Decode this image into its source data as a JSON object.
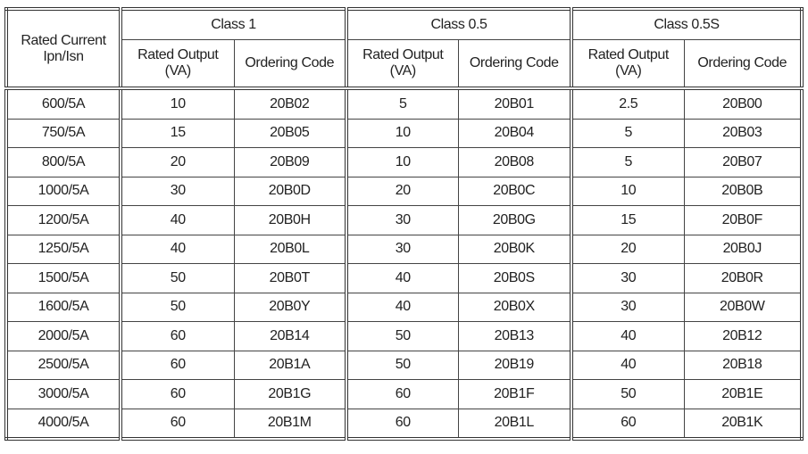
{
  "header": {
    "rated_current": [
      "Rated Current",
      "Ipn/Isn"
    ],
    "classes": [
      {
        "name": "Class 1",
        "output_label": [
          "Rated Output",
          "(VA)"
        ],
        "code_label": "Ordering Code"
      },
      {
        "name": "Class 0.5",
        "output_label": [
          "Rated Output",
          "(VA)"
        ],
        "code_label": "Ordering Code"
      },
      {
        "name": "Class 0.5S",
        "output_label": [
          "Rated Output",
          "(VA)"
        ],
        "code_label": "Ordering Code"
      }
    ]
  },
  "rows": [
    [
      "600/5A",
      "10",
      "20B02",
      "5",
      "20B01",
      "2.5",
      "20B00"
    ],
    [
      "750/5A",
      "15",
      "20B05",
      "10",
      "20B04",
      "5",
      "20B03"
    ],
    [
      "800/5A",
      "20",
      "20B09",
      "10",
      "20B08",
      "5",
      "20B07"
    ],
    [
      "1000/5A",
      "30",
      "20B0D",
      "20",
      "20B0C",
      "10",
      "20B0B"
    ],
    [
      "1200/5A",
      "40",
      "20B0H",
      "30",
      "20B0G",
      "15",
      "20B0F"
    ],
    [
      "1250/5A",
      "40",
      "20B0L",
      "30",
      "20B0K",
      "20",
      "20B0J"
    ],
    [
      "1500/5A",
      "50",
      "20B0T",
      "40",
      "20B0S",
      "30",
      "20B0R"
    ],
    [
      "1600/5A",
      "50",
      "20B0Y",
      "40",
      "20B0X",
      "30",
      "20B0W"
    ],
    [
      "2000/5A",
      "60",
      "20B14",
      "50",
      "20B13",
      "40",
      "20B12"
    ],
    [
      "2500/5A",
      "60",
      "20B1A",
      "50",
      "20B19",
      "40",
      "20B18"
    ],
    [
      "3000/5A",
      "60",
      "20B1G",
      "60",
      "20B1F",
      "50",
      "20B1E"
    ],
    [
      "4000/5A",
      "60",
      "20B1M",
      "60",
      "20B1L",
      "60",
      "20B1K"
    ]
  ]
}
